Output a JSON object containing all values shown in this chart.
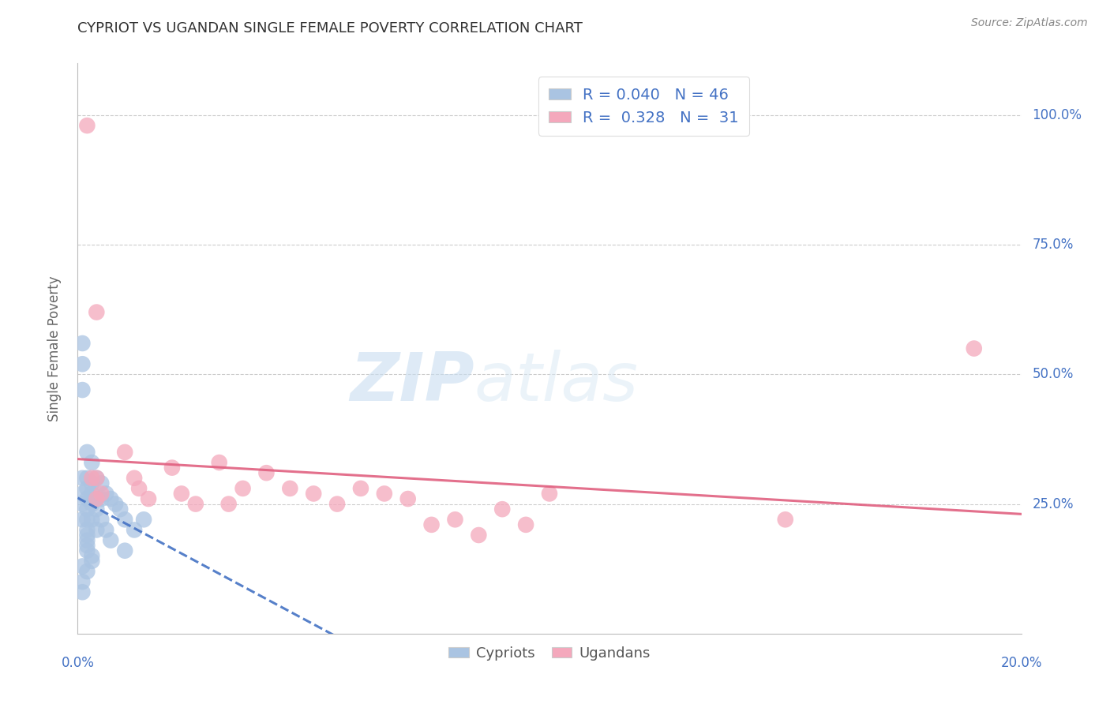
{
  "title": "CYPRIOT VS UGANDAN SINGLE FEMALE POVERTY CORRELATION CHART",
  "source": "Source: ZipAtlas.com",
  "ylabel": "Single Female Poverty",
  "ytick_labels": [
    "100.0%",
    "75.0%",
    "50.0%",
    "25.0%"
  ],
  "ytick_values": [
    1.0,
    0.75,
    0.5,
    0.25
  ],
  "xlim": [
    0.0,
    0.2
  ],
  "ylim": [
    0.0,
    1.1
  ],
  "cypriot_color": "#aac4e2",
  "ugandan_color": "#f4a8bc",
  "cypriot_line_color": "#4472c4",
  "ugandan_line_color": "#e06080",
  "legend_cypriot_R": "0.040",
  "legend_cypriot_N": "46",
  "legend_ugandan_R": "0.328",
  "legend_ugandan_N": "31",
  "watermark_zip": "ZIP",
  "watermark_atlas": "atlas",
  "background_color": "#ffffff",
  "cypriot_x": [
    0.001,
    0.001,
    0.001,
    0.001,
    0.001,
    0.001,
    0.001,
    0.001,
    0.002,
    0.002,
    0.002,
    0.002,
    0.002,
    0.002,
    0.002,
    0.002,
    0.002,
    0.003,
    0.003,
    0.003,
    0.003,
    0.003,
    0.003,
    0.004,
    0.004,
    0.004,
    0.004,
    0.005,
    0.005,
    0.005,
    0.006,
    0.006,
    0.007,
    0.007,
    0.008,
    0.009,
    0.01,
    0.01,
    0.012,
    0.014,
    0.001,
    0.002,
    0.002,
    0.003,
    0.001,
    0.002
  ],
  "cypriot_y": [
    0.56,
    0.52,
    0.47,
    0.3,
    0.27,
    0.25,
    0.22,
    0.1,
    0.35,
    0.3,
    0.28,
    0.26,
    0.24,
    0.22,
    0.2,
    0.18,
    0.16,
    0.33,
    0.29,
    0.27,
    0.25,
    0.22,
    0.14,
    0.3,
    0.26,
    0.24,
    0.2,
    0.29,
    0.26,
    0.22,
    0.27,
    0.2,
    0.26,
    0.18,
    0.25,
    0.24,
    0.22,
    0.16,
    0.2,
    0.22,
    0.13,
    0.12,
    0.17,
    0.15,
    0.08,
    0.19
  ],
  "ugandan_x": [
    0.002,
    0.003,
    0.004,
    0.004,
    0.005,
    0.01,
    0.012,
    0.013,
    0.015,
    0.02,
    0.022,
    0.025,
    0.03,
    0.032,
    0.035,
    0.04,
    0.045,
    0.05,
    0.055,
    0.06,
    0.065,
    0.07,
    0.075,
    0.08,
    0.085,
    0.09,
    0.095,
    0.1,
    0.15,
    0.19,
    0.004
  ],
  "ugandan_y": [
    0.98,
    0.3,
    0.3,
    0.26,
    0.27,
    0.35,
    0.3,
    0.28,
    0.26,
    0.32,
    0.27,
    0.25,
    0.33,
    0.25,
    0.28,
    0.31,
    0.28,
    0.27,
    0.25,
    0.28,
    0.27,
    0.26,
    0.21,
    0.22,
    0.19,
    0.24,
    0.21,
    0.27,
    0.22,
    0.55,
    0.62
  ]
}
